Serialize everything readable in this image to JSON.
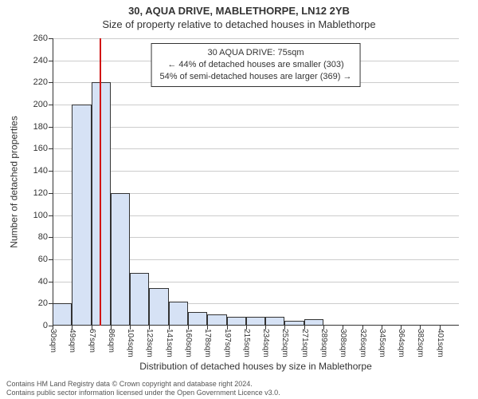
{
  "titles": {
    "super": "30, AQUA DRIVE, MABLETHORPE, LN12 2YB",
    "sub": "Size of property relative to detached houses in Mablethorpe",
    "y_axis": "Number of detached properties",
    "x_axis": "Distribution of detached houses by size in Mablethorpe"
  },
  "footer": {
    "line1": "Contains HM Land Registry data © Crown copyright and database right 2024.",
    "line2": "Contains public sector information licensed under the Open Government Licence v3.0."
  },
  "info_box": {
    "line1": "30 AQUA DRIVE: 75sqm",
    "line2": "← 44% of detached houses are smaller (303)",
    "line3": "54% of semi-detached houses are larger (369) →"
  },
  "chart": {
    "type": "histogram",
    "background_color": "#ffffff",
    "grid_color": "#cccccc",
    "axis_color": "#333333",
    "bar_fill": "#d6e2f5",
    "bar_border": "#333333",
    "marker_color": "#d11414",
    "marker_value": 75,
    "ylim": [
      0,
      260
    ],
    "ytick_step": 20,
    "x_start": 30,
    "bin_width": 18.5,
    "n_bins": 21,
    "values": [
      20,
      200,
      220,
      120,
      48,
      34,
      22,
      12,
      10,
      8,
      8,
      8,
      4,
      6,
      0,
      0,
      0,
      0,
      0,
      0,
      0
    ],
    "x_tick_labels": [
      "30sqm",
      "49sqm",
      "67sqm",
      "86sqm",
      "104sqm",
      "123sqm",
      "141sqm",
      "160sqm",
      "178sqm",
      "197sqm",
      "215sqm",
      "234sqm",
      "252sqm",
      "271sqm",
      "289sqm",
      "308sqm",
      "326sqm",
      "345sqm",
      "364sqm",
      "382sqm",
      "401sqm"
    ],
    "tick_fontsize": 11,
    "label_fontsize": 12,
    "title_fontsize": 13
  }
}
